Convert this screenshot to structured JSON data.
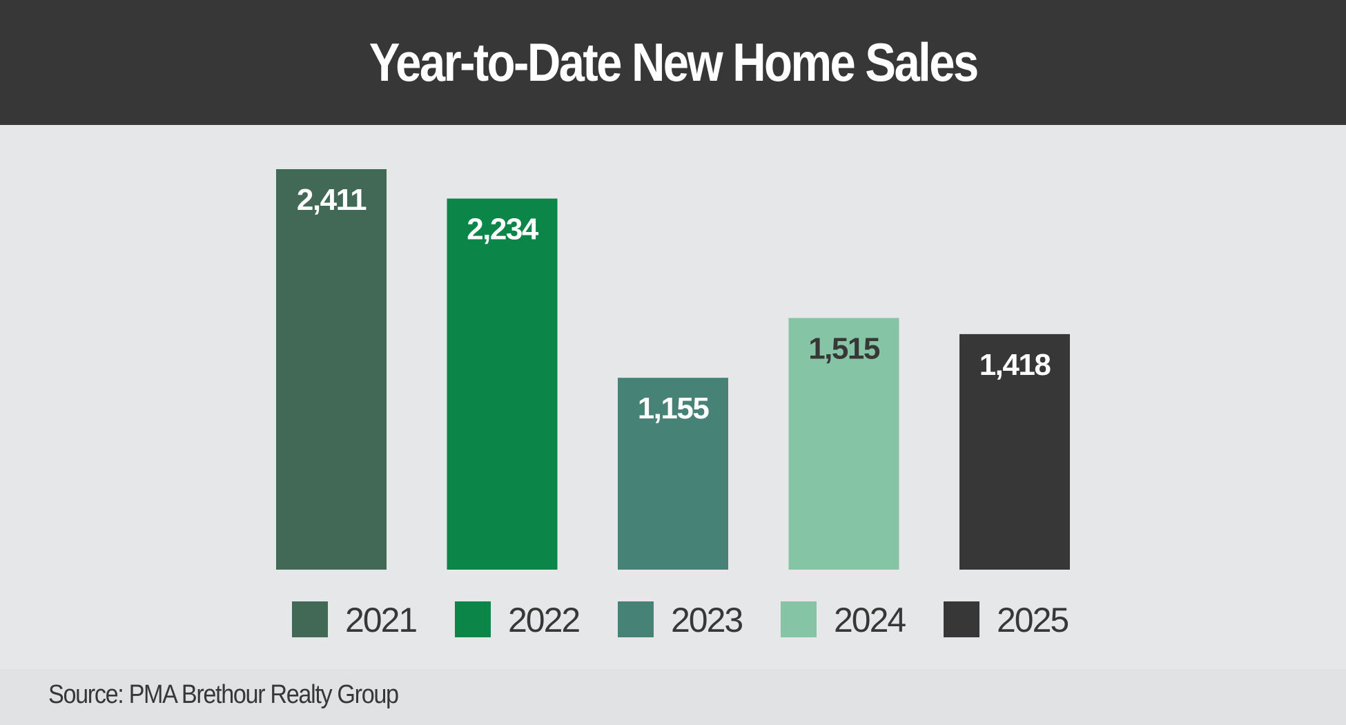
{
  "title": "Year-to-Date New Home Sales",
  "source": "Source: PMA Brethour Realty Group",
  "chart_data": {
    "type": "bar",
    "title": "Year-to-Date New Home Sales",
    "categories": [
      "2021",
      "2022",
      "2023",
      "2024",
      "2025"
    ],
    "values": [
      2411,
      2234,
      1155,
      1515,
      1418
    ],
    "value_labels": [
      "2,411",
      "2,234",
      "1,155",
      "1,515",
      "1,418"
    ],
    "colors": [
      "#426955",
      "#0b8648",
      "#468275",
      "#86c4a6",
      "#373737"
    ],
    "label_colors": [
      "#ffffff",
      "#ffffff",
      "#ffffff",
      "#373737",
      "#ffffff"
    ],
    "xlabel": "",
    "ylabel": "",
    "ylim": [
      0,
      2411
    ],
    "grid": false,
    "legend": {
      "placement": "bottom",
      "entries": [
        "2021",
        "2022",
        "2023",
        "2024",
        "2025"
      ]
    }
  }
}
